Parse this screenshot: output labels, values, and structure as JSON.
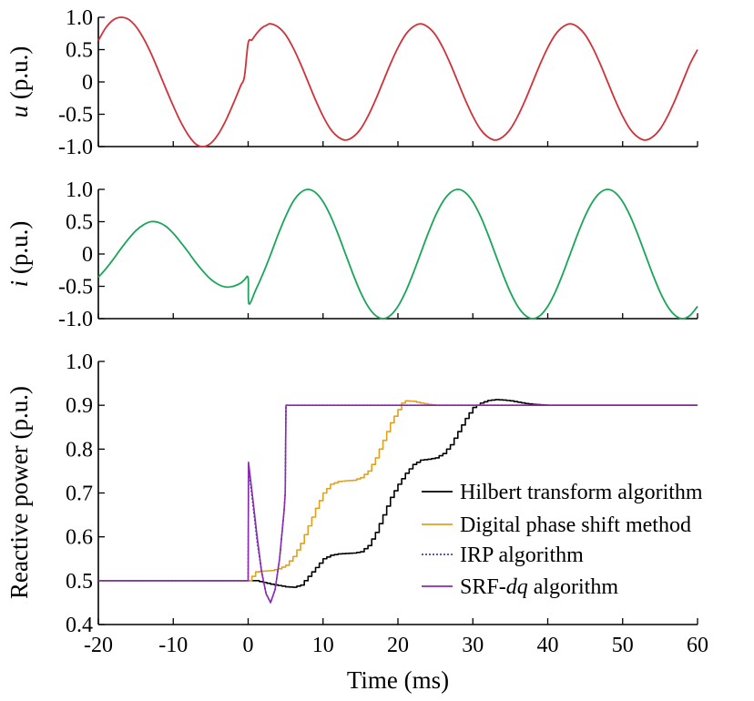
{
  "chart_data": [
    {
      "type": "line",
      "ylabel_var": "u",
      "ylabel_unit": " (p.u.)",
      "xlim": [
        -20,
        60
      ],
      "ylim": [
        -1.0,
        1.0
      ],
      "yticks": [
        1.0,
        0.5,
        0,
        -0.5,
        -1.0
      ],
      "ytick_labels": [
        "1.0",
        "0.5",
        "0",
        "-0.5",
        "-1.0"
      ],
      "series": [
        {
          "color": "#d0323a",
          "x": [
            -20,
            -19,
            -18,
            -17,
            -16,
            -15,
            -14,
            -13,
            -12,
            -11,
            -10,
            -9,
            -8,
            -7,
            -6,
            -5,
            -4,
            -3,
            -2,
            -1,
            -0.5,
            0,
            0.5,
            1,
            1.5,
            2,
            2.5,
            3,
            4,
            5,
            6,
            7,
            8,
            9,
            10,
            11,
            12,
            13,
            14,
            15,
            16,
            17,
            18,
            19,
            20,
            21,
            22,
            23,
            24,
            25,
            26,
            27,
            28,
            29,
            30,
            31,
            32,
            33,
            34,
            35,
            36,
            37,
            38,
            39,
            40,
            41,
            42,
            43,
            44,
            45,
            46,
            47,
            48,
            49,
            50,
            51,
            52,
            53,
            54,
            55,
            56,
            57,
            58,
            59,
            60
          ],
          "y": [
            0.64,
            0.84,
            0.96,
            1.0,
            0.97,
            0.86,
            0.68,
            0.45,
            0.18,
            -0.1,
            -0.37,
            -0.62,
            -0.82,
            -0.96,
            -1.0,
            -0.95,
            -0.81,
            -0.6,
            -0.34,
            -0.06,
            0.08,
            0.6,
            0.65,
            0.73,
            0.8,
            0.85,
            0.88,
            0.9,
            0.85,
            0.73,
            0.53,
            0.28,
            0.0,
            -0.28,
            -0.53,
            -0.73,
            -0.85,
            -0.9,
            -0.85,
            -0.73,
            -0.53,
            -0.28,
            0.0,
            0.28,
            0.53,
            0.73,
            0.85,
            0.9,
            0.85,
            0.73,
            0.53,
            0.28,
            0.0,
            -0.28,
            -0.53,
            -0.73,
            -0.85,
            -0.9,
            -0.85,
            -0.73,
            -0.53,
            -0.28,
            0.0,
            0.28,
            0.53,
            0.73,
            0.85,
            0.9,
            0.85,
            0.73,
            0.53,
            0.28,
            0.0,
            -0.28,
            -0.53,
            -0.73,
            -0.85,
            -0.9,
            -0.85,
            -0.73,
            -0.53,
            -0.28,
            0.0,
            0.28,
            0.5
          ]
        }
      ]
    },
    {
      "type": "line",
      "ylabel_var": "i",
      "ylabel_unit": " (p.u.)",
      "xlim": [
        -20,
        60
      ],
      "ylim": [
        -1.0,
        1.0
      ],
      "yticks": [
        1.0,
        0.5,
        0,
        -0.5,
        -1.0
      ],
      "ytick_labels": [
        "1.0",
        "0.5",
        "0",
        "-0.5",
        "-1.0"
      ],
      "series": [
        {
          "color": "#1aa55a",
          "x": [
            -20,
            -19,
            -18,
            -17,
            -16,
            -15,
            -14,
            -13,
            -12,
            -11,
            -10,
            -9,
            -8,
            -7,
            -6,
            -5,
            -4,
            -3,
            -2,
            -1,
            -0.5,
            0,
            0.1,
            1,
            2,
            3,
            4,
            5,
            6,
            7,
            8,
            9,
            10,
            11,
            12,
            13,
            14,
            15,
            16,
            17,
            18,
            19,
            20,
            21,
            22,
            23,
            24,
            25,
            26,
            27,
            28,
            29,
            30,
            31,
            32,
            33,
            34,
            35,
            36,
            37,
            38,
            39,
            40,
            41,
            42,
            43,
            44,
            45,
            46,
            47,
            48,
            49,
            50,
            51,
            52,
            53,
            54,
            55,
            56,
            57,
            58,
            59,
            60
          ],
          "y": [
            -0.36,
            -0.23,
            -0.08,
            0.08,
            0.23,
            0.36,
            0.45,
            0.5,
            0.49,
            0.43,
            0.32,
            0.18,
            0.03,
            -0.13,
            -0.27,
            -0.39,
            -0.47,
            -0.51,
            -0.5,
            -0.45,
            -0.4,
            -0.37,
            -0.77,
            -0.56,
            -0.3,
            -0.01,
            0.3,
            0.58,
            0.81,
            0.95,
            1.0,
            0.95,
            0.81,
            0.59,
            0.31,
            0.0,
            -0.31,
            -0.59,
            -0.81,
            -0.95,
            -1.0,
            -0.95,
            -0.81,
            -0.59,
            -0.31,
            0.0,
            0.31,
            0.59,
            0.81,
            0.95,
            1.0,
            0.95,
            0.81,
            0.59,
            0.31,
            0.0,
            -0.31,
            -0.59,
            -0.81,
            -0.95,
            -1.0,
            -0.95,
            -0.81,
            -0.59,
            -0.31,
            0.0,
            0.31,
            0.59,
            0.81,
            0.95,
            1.0,
            0.95,
            0.81,
            0.59,
            0.31,
            0.0,
            -0.31,
            -0.59,
            -0.81,
            -0.95,
            -1.0,
            -0.95,
            -0.81
          ]
        }
      ]
    },
    {
      "type": "line",
      "ylabel": "Reactive power (p.u.)",
      "xlabel": "Time (ms)",
      "xlim": [
        -20,
        60
      ],
      "ylim": [
        0.4,
        1.0
      ],
      "xticks": [
        -20,
        -10,
        0,
        10,
        20,
        30,
        40,
        50,
        60
      ],
      "xtick_labels": [
        "-20",
        "-10",
        "0",
        "10",
        "20",
        "30",
        "40",
        "50",
        "60"
      ],
      "yticks": [
        1.0,
        0.9,
        0.8,
        0.7,
        0.6,
        0.5,
        0.4
      ],
      "ytick_labels": [
        "1.0",
        "0.9",
        "0.8",
        "0.7",
        "0.6",
        "0.5",
        "0.4"
      ],
      "legend_position": "right",
      "series": [
        {
          "name": "Hilbert transform algorithm",
          "color": "#000000",
          "dash": "",
          "step": true,
          "x": [
            -20,
            0,
            1,
            2,
            3,
            4,
            5,
            6,
            7,
            8,
            9,
            10,
            11,
            12,
            13,
            14,
            15,
            16,
            17,
            18,
            19,
            20,
            21,
            22,
            23,
            24,
            25,
            26,
            27,
            28,
            29,
            30,
            31,
            32,
            33,
            34,
            35,
            36,
            37,
            38,
            39,
            40,
            45,
            50,
            55,
            60
          ],
          "y": [
            0.5,
            0.5,
            0.5,
            0.496,
            0.492,
            0.489,
            0.486,
            0.485,
            0.49,
            0.51,
            0.53,
            0.55,
            0.558,
            0.561,
            0.562,
            0.563,
            0.566,
            0.58,
            0.61,
            0.65,
            0.69,
            0.72,
            0.745,
            0.765,
            0.775,
            0.777,
            0.78,
            0.79,
            0.81,
            0.84,
            0.87,
            0.895,
            0.905,
            0.911,
            0.913,
            0.912,
            0.91,
            0.907,
            0.904,
            0.902,
            0.901,
            0.9,
            0.9,
            0.9,
            0.9,
            0.9
          ]
        },
        {
          "name": "Digital phase shift method",
          "color": "#e0a020",
          "dash": "",
          "step": true,
          "x": [
            -20,
            0,
            0.5,
            1,
            2,
            3,
            4,
            5,
            6,
            7,
            8,
            9,
            10,
            11,
            12,
            13,
            14,
            15,
            16,
            17,
            18,
            19,
            20,
            20.5,
            21,
            22,
            23,
            24,
            25,
            30,
            35,
            40,
            45,
            50,
            55,
            60
          ],
          "y": [
            0.5,
            0.5,
            0.51,
            0.52,
            0.522,
            0.523,
            0.527,
            0.535,
            0.555,
            0.585,
            0.625,
            0.665,
            0.7,
            0.72,
            0.726,
            0.728,
            0.729,
            0.735,
            0.75,
            0.78,
            0.82,
            0.86,
            0.89,
            0.905,
            0.91,
            0.909,
            0.905,
            0.902,
            0.9,
            0.9,
            0.9,
            0.9,
            0.9,
            0.9,
            0.9,
            0.9
          ]
        },
        {
          "name": "IRP algorithm",
          "color": "#1e2a8a",
          "dash": "2,2",
          "step": false,
          "x": [
            -20,
            0,
            0.05,
            0.6,
            1.2,
            1.8,
            2.4,
            3,
            3.6,
            4.2,
            4.8,
            4.95,
            5.05,
            10,
            20,
            30,
            40,
            50,
            60
          ],
          "y": [
            0.5,
            0.5,
            0.76,
            0.68,
            0.59,
            0.52,
            0.47,
            0.45,
            0.48,
            0.55,
            0.66,
            0.7,
            0.9,
            0.9,
            0.9,
            0.9,
            0.9,
            0.9,
            0.9
          ]
        },
        {
          "name": "SRF-dq algorithm",
          "color": "#8a2ab4",
          "dash": "",
          "step": false,
          "x": [
            -20,
            0,
            0.05,
            0.6,
            1.2,
            1.8,
            2.4,
            3,
            3.6,
            4.2,
            4.8,
            4.95,
            5.05,
            10,
            20,
            30,
            40,
            50,
            60
          ],
          "y": [
            0.5,
            0.5,
            0.77,
            0.69,
            0.6,
            0.52,
            0.47,
            0.45,
            0.48,
            0.55,
            0.66,
            0.7,
            0.9,
            0.9,
            0.9,
            0.9,
            0.9,
            0.9,
            0.9
          ]
        }
      ]
    }
  ]
}
